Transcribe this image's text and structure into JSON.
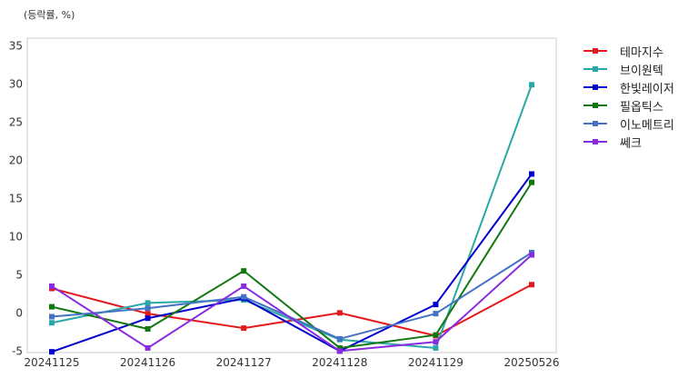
{
  "chart_data": {
    "type": "line",
    "unit_label": "(등락률, %)",
    "title": "",
    "xlabel": "",
    "ylabel": "",
    "categories": [
      "20241125",
      "20241126",
      "20241127",
      "20241128",
      "20241129",
      "20250526"
    ],
    "ylim": [
      -5.2,
      36
    ],
    "yticks": [
      -5,
      0,
      5,
      10,
      15,
      20,
      25,
      30,
      35
    ],
    "grid": true,
    "legend_position": "right-outside-top",
    "marker": "square",
    "series": [
      {
        "name": "테마지수",
        "color": "#e31a1c",
        "values": [
          3.2,
          -0.1,
          -2.0,
          0.0,
          -3.0,
          3.7
        ]
      },
      {
        "name": "브이원텍",
        "color": "#2aa8a8",
        "values": [
          -1.3,
          1.3,
          1.7,
          -3.5,
          -4.6,
          29.9
        ]
      },
      {
        "name": "한빛레이저",
        "color": "#0000cc",
        "values": [
          -5.1,
          -0.7,
          1.9,
          -5.0,
          1.1,
          18.2
        ]
      },
      {
        "name": "필옵틱스",
        "color": "#117711",
        "values": [
          0.8,
          -2.1,
          5.5,
          -4.6,
          -2.9,
          17.1
        ]
      },
      {
        "name": "이노메트리",
        "color": "#4472c4",
        "values": [
          -0.5,
          0.6,
          2.1,
          -3.4,
          -0.1,
          7.9
        ]
      },
      {
        "name": "쎄크",
        "color": "#8a2be2",
        "values": [
          3.5,
          -4.6,
          3.5,
          -5.0,
          -3.8,
          7.6
        ]
      }
    ]
  }
}
